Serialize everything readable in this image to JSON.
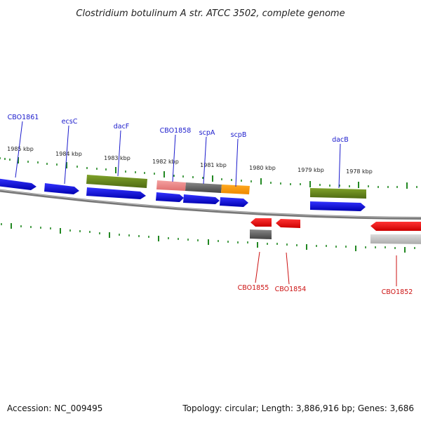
{
  "title": "Clostridium botulinum A str. ATCC 3502, complete genome",
  "footer": {
    "accession": "Accession: NC_009495",
    "summary": "Topology: circular; Length: 3,886,916 bp; Genes: 3,686"
  },
  "colors": {
    "forward": "#1a1adf",
    "reverse": "#ee1111",
    "feature_green": "#6b8c1f",
    "feature_pink": "#ee8888",
    "feature_gray": "#666666",
    "feature_orange": "#ff9900",
    "feature_lightgray": "#bbbbbb",
    "tick": "#228822",
    "backbone": "#888888"
  },
  "tick_labels": [
    "1985 kbp",
    "1984 kbp",
    "1983 kbp",
    "1982 kbp",
    "1981 kbp",
    "1980 kbp",
    "1979 kbp",
    "1978 kbp"
  ],
  "forward_labels": [
    "CBO1861",
    "ecsC",
    "dacF",
    "CBO1858",
    "scpA",
    "scpB",
    "dacB"
  ],
  "reverse_labels": [
    "CBO1855",
    "CBO1854",
    "CBO1852"
  ]
}
